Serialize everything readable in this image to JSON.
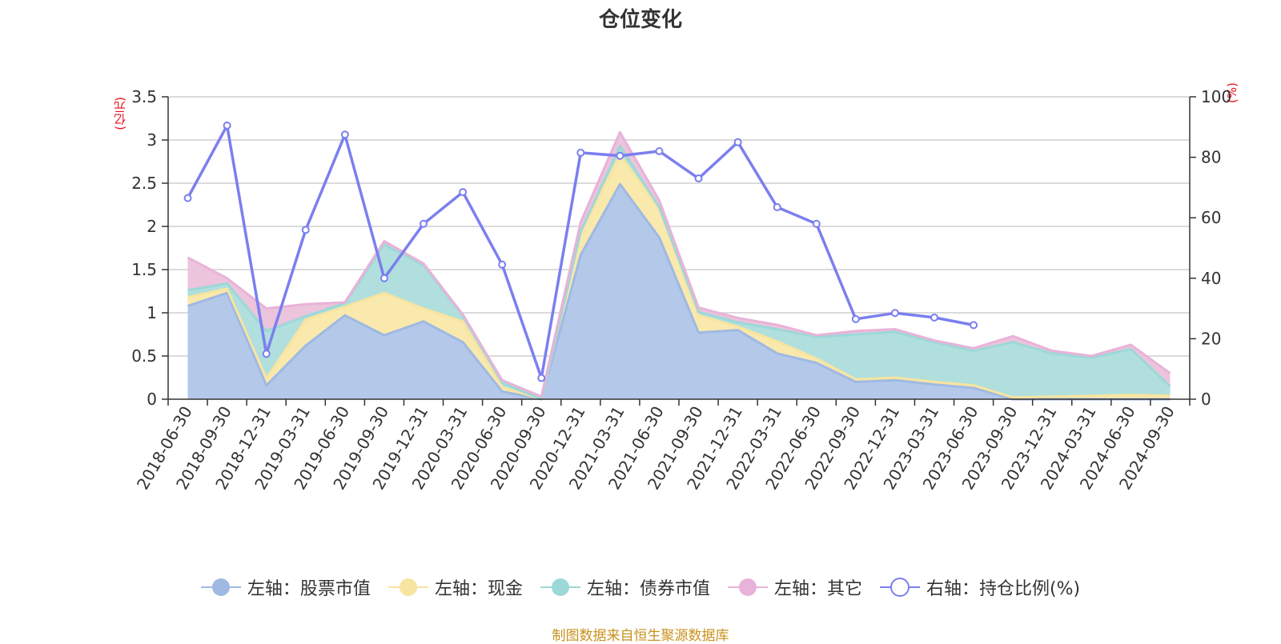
{
  "chart_data": {
    "type": "area",
    "title": "仓位变化",
    "left_axis_unit": "(亿元)",
    "right_axis_unit": "(%)",
    "source": "制图数据来自恒生聚源数据库",
    "categories": [
      "2018-06-30",
      "2018-09-30",
      "2018-12-31",
      "2019-03-31",
      "2019-06-30",
      "2019-09-30",
      "2019-12-31",
      "2020-03-31",
      "2020-06-30",
      "2020-09-30",
      "2020-12-31",
      "2021-03-31",
      "2021-06-30",
      "2021-09-30",
      "2021-12-31",
      "2022-03-31",
      "2022-06-30",
      "2022-09-30",
      "2022-12-31",
      "2023-03-31",
      "2023-06-30",
      "2023-09-30",
      "2023-12-31",
      "2024-03-31",
      "2024-06-30",
      "2024-09-30"
    ],
    "y_left_ticks": [
      "0",
      "0.5",
      "1",
      "1.5",
      "2",
      "2.5",
      "3",
      "3.5"
    ],
    "y_left_range": [
      0,
      3.5
    ],
    "y_right_ticks": [
      "0",
      "20",
      "40",
      "60",
      "80",
      "100"
    ],
    "y_right_range": [
      0,
      100
    ],
    "grid": true,
    "legend_position": "bottom",
    "series": [
      {
        "name": "左轴：股票市值",
        "axis": "left",
        "kind": "stacked-area",
        "color": "#9fb9e2",
        "fill": "#b4c8ea",
        "values": [
          1.08,
          1.23,
          0.16,
          0.62,
          0.97,
          0.74,
          0.9,
          0.66,
          0.09,
          0.0,
          1.67,
          2.49,
          1.87,
          0.77,
          0.8,
          0.53,
          0.42,
          0.2,
          0.22,
          0.17,
          0.13,
          0.0,
          0.0,
          0.0,
          0.0,
          0.0
        ]
      },
      {
        "name": "左轴：现金",
        "axis": "left",
        "kind": "stacked-area",
        "color": "#f7e4a0",
        "fill": "#f9e9ad",
        "values": [
          0.1,
          0.05,
          0.08,
          0.3,
          0.1,
          0.49,
          0.15,
          0.24,
          0.05,
          0.0,
          0.25,
          0.34,
          0.33,
          0.2,
          0.04,
          0.14,
          0.05,
          0.03,
          0.03,
          0.03,
          0.03,
          0.02,
          0.03,
          0.04,
          0.05,
          0.04
        ]
      },
      {
        "name": "左轴：债券市值",
        "axis": "left",
        "kind": "stacked-area",
        "color": "#9dd8d8",
        "fill": "#b0dfdd",
        "values": [
          0.08,
          0.06,
          0.55,
          0.04,
          0.04,
          0.56,
          0.5,
          0.07,
          0.05,
          0.0,
          0.02,
          0.1,
          0.02,
          0.04,
          0.05,
          0.14,
          0.25,
          0.52,
          0.53,
          0.46,
          0.4,
          0.64,
          0.5,
          0.44,
          0.53,
          0.11
        ]
      },
      {
        "name": "左轴：其它",
        "axis": "left",
        "kind": "stacked-area",
        "color": "#e8b3d8",
        "fill": "#ecc4dc",
        "values": [
          0.38,
          0.06,
          0.26,
          0.14,
          0.01,
          0.04,
          0.02,
          0.01,
          0.03,
          0.03,
          0.11,
          0.16,
          0.08,
          0.05,
          0.05,
          0.05,
          0.02,
          0.04,
          0.03,
          0.02,
          0.03,
          0.07,
          0.03,
          0.02,
          0.05,
          0.15
        ]
      },
      {
        "name": "右轴：持仓比例(%)",
        "axis": "right",
        "kind": "line",
        "color": "#7b7fee",
        "values": [
          66.5,
          90.5,
          15.0,
          56.0,
          87.5,
          40.0,
          58.0,
          68.5,
          44.5,
          7.0,
          81.5,
          80.5,
          82.0,
          73.0,
          85.0,
          63.5,
          58.0,
          26.5,
          28.5,
          27.0,
          24.5,
          null,
          null,
          null,
          null,
          null
        ]
      }
    ]
  }
}
